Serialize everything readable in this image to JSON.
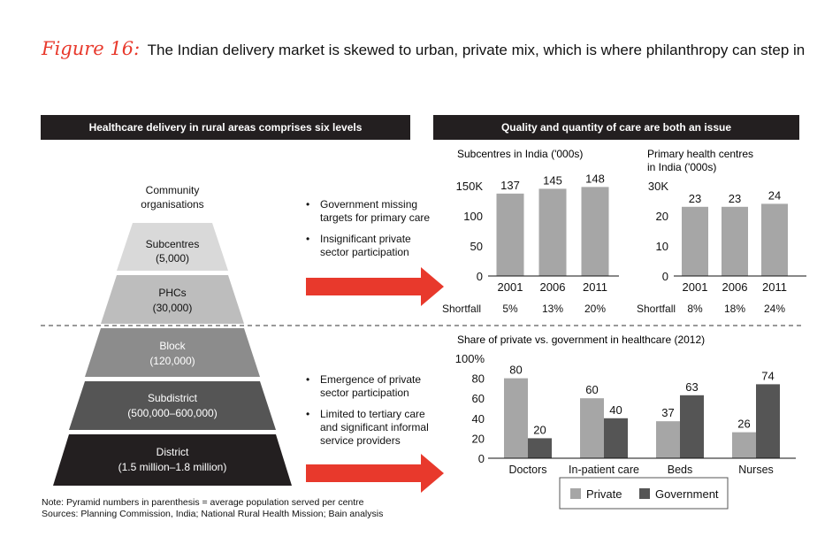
{
  "figure_label": "Figure 16:",
  "title": "The Indian delivery market is skewed to urban, private mix, which is where philanthropy can step in",
  "left_banner": "Healthcare delivery in rural areas comprises six levels",
  "right_banner": "Quality and quantity of care are both an issue",
  "pyramid_levels": [
    {
      "line1": "Community",
      "line2": "organisations",
      "color": "#ffffff",
      "text_color": "#111111"
    },
    {
      "line1": "Subcentres",
      "line2": "(5,000)",
      "color": "#d9d9d9",
      "text_color": "#111111"
    },
    {
      "line1": "PHCs",
      "line2": "(30,000)",
      "color": "#bdbdbd",
      "text_color": "#111111"
    },
    {
      "line1": "Block",
      "line2": "(120,000)",
      "color": "#8c8c8c",
      "text_color": "#ffffff"
    },
    {
      "line1": "Subdistrict",
      "line2": "(500,000–600,000)",
      "color": "#555555",
      "text_color": "#ffffff"
    },
    {
      "line1": "District",
      "line2": "(1.5 million–1.8 million)",
      "color": "#231f20",
      "text_color": "#ffffff"
    }
  ],
  "bullets_top": [
    {
      "line1": "Government missing",
      "line2": "targets for primary care"
    },
    {
      "line1": "Insignificant private",
      "line2": "sector participation"
    }
  ],
  "bullets_bottom": [
    {
      "line1": "Emergence of  private",
      "line2": "sector participation"
    },
    {
      "line1": "Limited to tertiary care",
      "line2": "and significant informal",
      "line3": "service providers"
    }
  ],
  "arrow_color": "#e8392c",
  "note": "Note: Pyramid numbers in parenthesis = average population served per centre",
  "sources": "Sources: Planning Commission, India; National Rural Health Mission; Bain analysis",
  "chart_data": [
    {
      "type": "bar",
      "title": "Subcentres in India ('000s)",
      "categories": [
        "2001",
        "2006",
        "2011"
      ],
      "values": [
        137,
        145,
        148
      ],
      "ylim": [
        0,
        150
      ],
      "yticks": [
        "0",
        "50",
        "100",
        "150K"
      ],
      "shortfall_label": "Shortfall",
      "shortfall": [
        "5%",
        "13%",
        "20%"
      ],
      "color": "#a6a6a6"
    },
    {
      "type": "bar",
      "title_line1": "Primary health centres",
      "title_line2": "in India ('000s)",
      "categories": [
        "2001",
        "2006",
        "2011"
      ],
      "values": [
        23,
        23,
        24
      ],
      "ylim": [
        0,
        30
      ],
      "yticks": [
        "0",
        "10",
        "20",
        "30K"
      ],
      "shortfall_label": "Shortfall",
      "shortfall": [
        "8%",
        "18%",
        "24%"
      ],
      "color": "#a6a6a6"
    },
    {
      "type": "bar",
      "title": "Share of private vs. government in healthcare (2012)",
      "categories": [
        "Doctors",
        "In-patient care",
        "Beds",
        "Nurses"
      ],
      "series": [
        {
          "name": "Private",
          "values": [
            80,
            60,
            37,
            26
          ],
          "color": "#a6a6a6"
        },
        {
          "name": "Government",
          "values": [
            20,
            40,
            63,
            74
          ],
          "color": "#555555"
        }
      ],
      "ylim": [
        0,
        100
      ],
      "yticks": [
        "0",
        "20",
        "40",
        "60",
        "80",
        "100%"
      ],
      "legend": "bottom"
    }
  ]
}
